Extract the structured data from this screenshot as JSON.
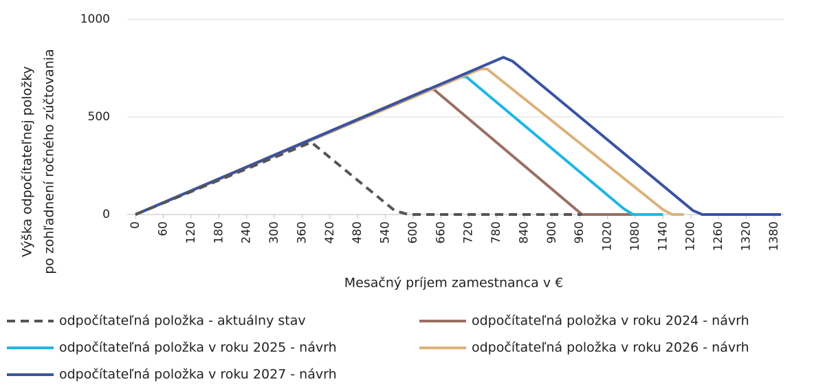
{
  "chart_data": {
    "type": "line",
    "xlabel": "Mesačný príjem zamestnanca v €",
    "ylabel": [
      "Výška odpočítateľnej položky",
      "po zohľadnení ročného zúčtovania"
    ],
    "xlim": [
      -18,
      1401
    ],
    "xticks": [
      0,
      60,
      120,
      180,
      240,
      300,
      360,
      420,
      480,
      540,
      600,
      660,
      720,
      780,
      840,
      900,
      960,
      1020,
      1080,
      1140,
      1200,
      1260,
      1320,
      1380
    ],
    "ylim": [
      0,
      1000
    ],
    "yticks": [
      0,
      500,
      1000
    ],
    "grid": true,
    "series": [
      {
        "name": "odpočítateľná položka - aktuálny stav",
        "color": "#555555",
        "dashed": true,
        "x": [
          0,
          380,
          560,
          590,
          965
        ],
        "values": [
          0,
          370,
          20,
          0,
          0
        ]
      },
      {
        "name": "odpočítateľná položka  v roku 2024 - návrh",
        "color": "#9a6f62",
        "x": [
          0,
          630,
          645,
          965,
          1080
        ],
        "values": [
          0,
          640,
          640,
          0,
          0
        ]
      },
      {
        "name": "odpočítateľná položka  v roku 2025 - návrh",
        "color": "#1fb6e6",
        "x": [
          0,
          700,
          715,
          1055,
          1075,
          1140
        ],
        "values": [
          0,
          705,
          705,
          30,
          0,
          0
        ]
      },
      {
        "name": "odpočítateľná položka  v roku 2026 - návrh",
        "color": "#dcb27a",
        "x": [
          0,
          745,
          760,
          1140,
          1160,
          1185
        ],
        "values": [
          0,
          745,
          745,
          25,
          0,
          0
        ]
      },
      {
        "name": "odpočítateľná položka  v roku 2027 - návrh",
        "color": "#3953a4",
        "x": [
          0,
          795,
          815,
          1205,
          1225,
          1395
        ],
        "values": [
          0,
          805,
          785,
          20,
          0,
          0
        ]
      }
    ]
  }
}
